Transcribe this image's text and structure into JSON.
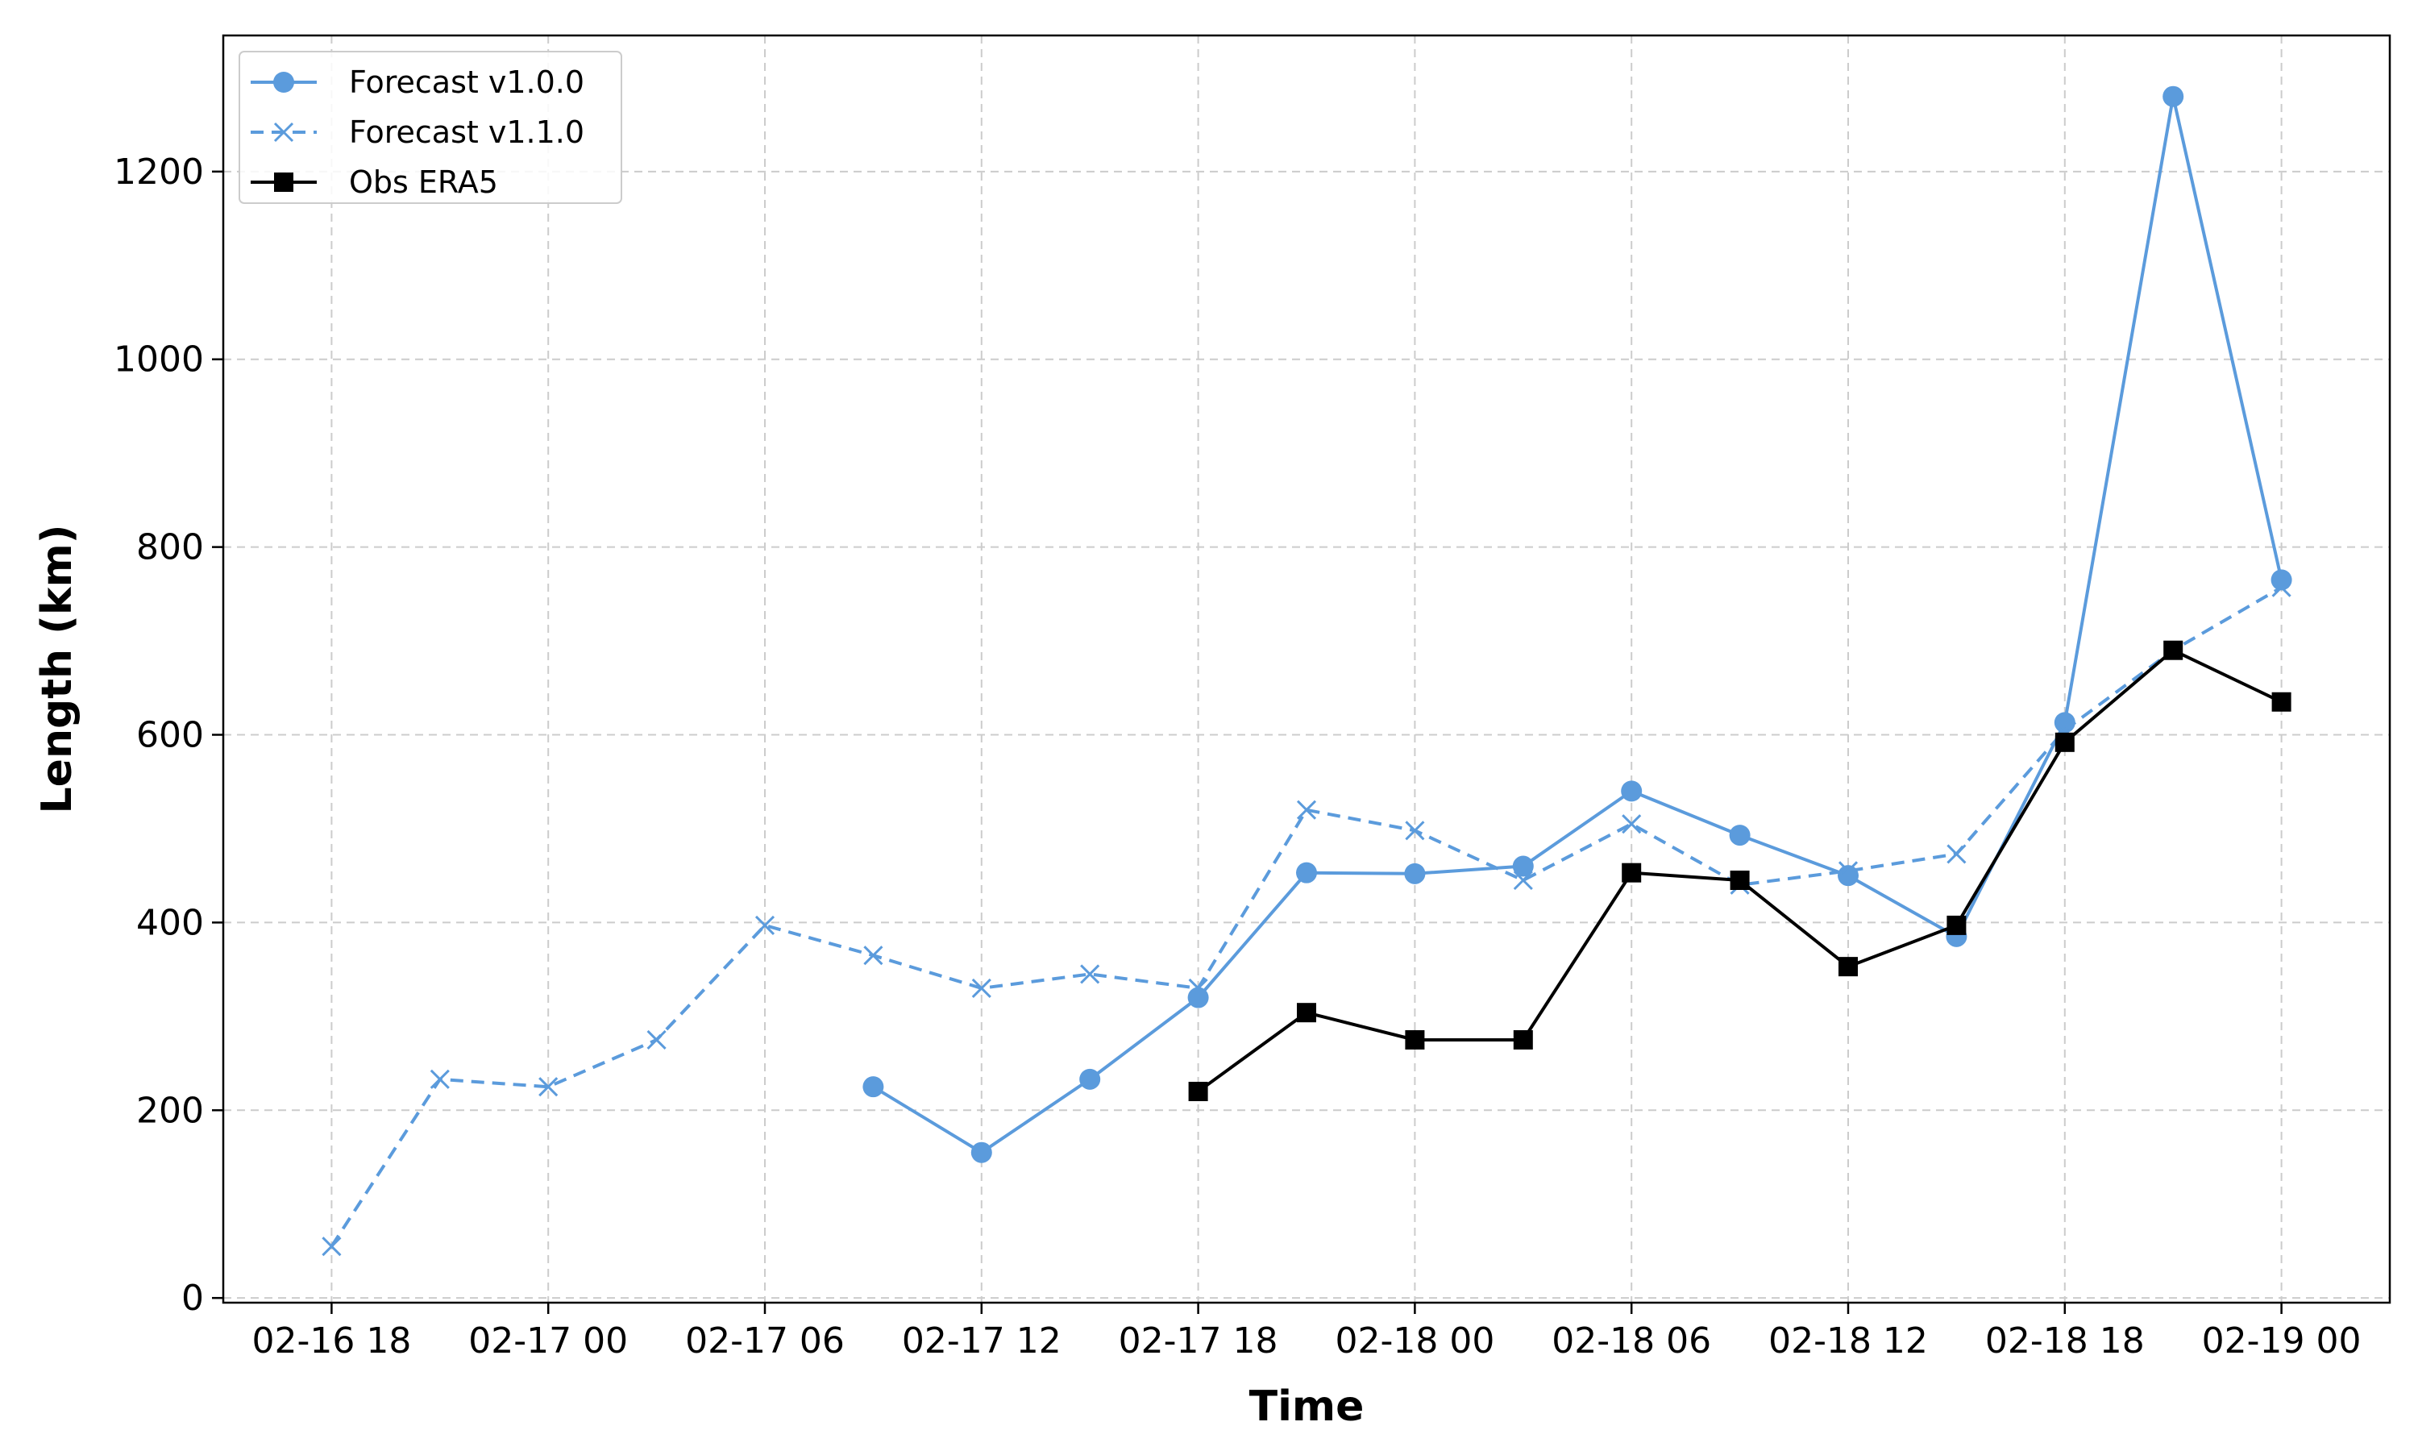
{
  "chart_data": {
    "type": "line",
    "title": "",
    "xlabel": "Time",
    "ylabel": "Length (km)",
    "x_ticks": [
      "02-16 18",
      "02-17 00",
      "02-17 06",
      "02-17 12",
      "02-17 18",
      "02-18 00",
      "02-18 06",
      "02-18 12",
      "02-18 18",
      "02-19 00"
    ],
    "y_ticks": [
      0,
      200,
      400,
      600,
      800,
      1000,
      1200
    ],
    "xlim": [
      "02-16 15",
      "02-19 03"
    ],
    "ylim": [
      -5,
      1345
    ],
    "grid": true,
    "legend_position": "top-left",
    "series": [
      {
        "name": "Forecast v1.0.0",
        "color": "#5b9bdc",
        "line_style": "solid",
        "marker": "circle",
        "x": [
          "02-17 09",
          "02-17 12",
          "02-17 15",
          "02-17 18",
          "02-17 21",
          "02-18 00",
          "02-18 03",
          "02-18 06",
          "02-18 09",
          "02-18 12",
          "02-18 15",
          "02-18 18",
          "02-18 21",
          "02-19 00"
        ],
        "y": [
          225,
          155,
          233,
          320,
          453,
          452,
          460,
          540,
          493,
          450,
          385,
          613,
          1280,
          765
        ]
      },
      {
        "name": "Forecast v1.1.0",
        "color": "#5b9bdc",
        "line_style": "dashed",
        "marker": "x",
        "x": [
          "02-16 18",
          "02-16 21",
          "02-17 00",
          "02-17 03",
          "02-17 06",
          "02-17 09",
          "02-17 12",
          "02-17 15",
          "02-17 18",
          "02-17 21",
          "02-18 00",
          "02-18 03",
          "02-18 06",
          "02-18 09",
          "02-18 12",
          "02-18 15",
          "02-18 18",
          "02-18 21",
          "02-19 00"
        ],
        "y": [
          55,
          233,
          225,
          275,
          397,
          365,
          330,
          345,
          330,
          520,
          498,
          445,
          505,
          440,
          455,
          473,
          605,
          690,
          757
        ]
      },
      {
        "name": "Obs ERA5",
        "color": "#000000",
        "line_style": "solid",
        "marker": "square",
        "x": [
          "02-17 18",
          "02-17 21",
          "02-18 00",
          "02-18 03",
          "02-18 06",
          "02-18 09",
          "02-18 12",
          "02-18 15",
          "02-18 18",
          "02-18 21",
          "02-19 00"
        ],
        "y": [
          220,
          304,
          275,
          275,
          453,
          445,
          353,
          397,
          592,
          690,
          635
        ]
      }
    ]
  }
}
